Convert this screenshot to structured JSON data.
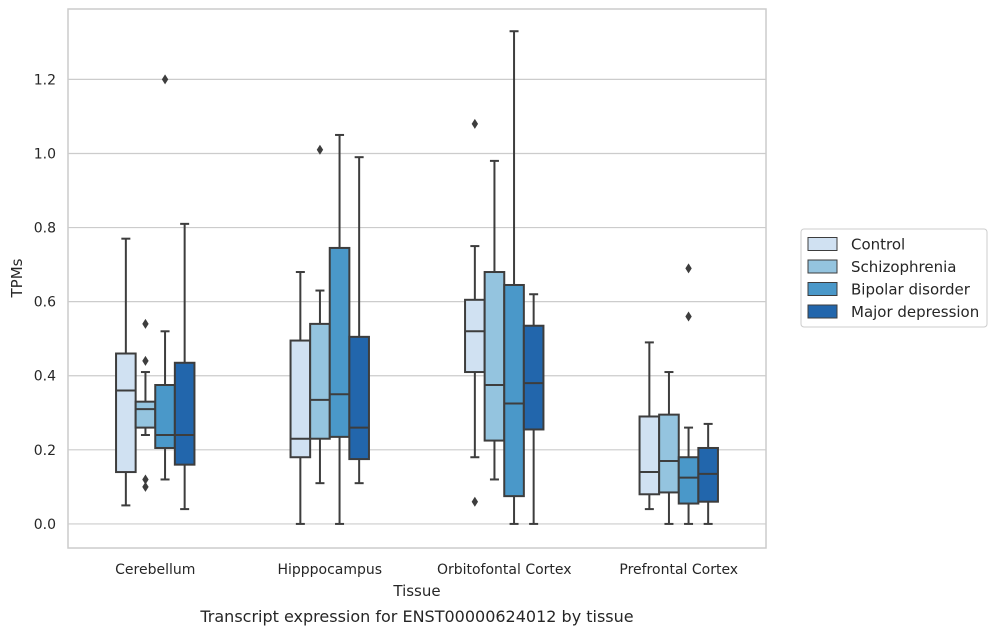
{
  "caption": "Transcript expression for ENST00000624012 by tissue",
  "chart_data": {
    "type": "box",
    "xlabel": "Tissue",
    "ylabel": "TPMs",
    "ylim": [
      -0.065,
      1.39
    ],
    "yticks": [
      "0.0",
      "0.2",
      "0.4",
      "0.6",
      "0.8",
      "1.0",
      "1.2"
    ],
    "grid": "horizontal",
    "legend_position": "right",
    "categories": [
      "Cerebellum",
      "Hipppocampus",
      "Orbitofontal Cortex",
      "Prefrontal Cortex"
    ],
    "series": [
      {
        "name": "Control",
        "color": "#d0e1f2",
        "boxes": [
          {
            "whislo": 0.05,
            "q1": 0.14,
            "med": 0.36,
            "q3": 0.46,
            "whishi": 0.77,
            "fliers": []
          },
          {
            "whislo": 0.0,
            "q1": 0.18,
            "med": 0.23,
            "q3": 0.495,
            "whishi": 0.68,
            "fliers": []
          },
          {
            "whislo": 0.18,
            "q1": 0.41,
            "med": 0.52,
            "q3": 0.605,
            "whishi": 0.75,
            "fliers": [
              1.08,
              0.06
            ]
          },
          {
            "whislo": 0.04,
            "q1": 0.08,
            "med": 0.14,
            "q3": 0.29,
            "whishi": 0.49,
            "fliers": []
          }
        ]
      },
      {
        "name": "Schizophrenia",
        "color": "#94c4df",
        "boxes": [
          {
            "whislo": 0.24,
            "q1": 0.26,
            "med": 0.31,
            "q3": 0.33,
            "whishi": 0.41,
            "fliers": [
              0.54,
              0.44,
              0.12,
              0.1
            ]
          },
          {
            "whislo": 0.11,
            "q1": 0.23,
            "med": 0.335,
            "q3": 0.54,
            "whishi": 0.63,
            "fliers": [
              1.01
            ]
          },
          {
            "whislo": 0.12,
            "q1": 0.225,
            "med": 0.375,
            "q3": 0.68,
            "whishi": 0.98,
            "fliers": []
          },
          {
            "whislo": 0.0,
            "q1": 0.085,
            "med": 0.17,
            "q3": 0.295,
            "whishi": 0.41,
            "fliers": []
          }
        ]
      },
      {
        "name": "Bipolar disorder",
        "color": "#4a98c9",
        "boxes": [
          {
            "whislo": 0.12,
            "q1": 0.205,
            "med": 0.24,
            "q3": 0.375,
            "whishi": 0.52,
            "fliers": [
              1.2
            ]
          },
          {
            "whislo": 0.0,
            "q1": 0.235,
            "med": 0.35,
            "q3": 0.745,
            "whishi": 1.05,
            "fliers": []
          },
          {
            "whislo": 0.0,
            "q1": 0.075,
            "med": 0.325,
            "q3": 0.645,
            "whishi": 1.33,
            "fliers": []
          },
          {
            "whislo": 0.0,
            "q1": 0.055,
            "med": 0.125,
            "q3": 0.18,
            "whishi": 0.26,
            "fliers": [
              0.69,
              0.56
            ]
          }
        ]
      },
      {
        "name": "Major depression",
        "color": "#2266ac",
        "boxes": [
          {
            "whislo": 0.04,
            "q1": 0.16,
            "med": 0.24,
            "q3": 0.435,
            "whishi": 0.81,
            "fliers": []
          },
          {
            "whislo": 0.11,
            "q1": 0.175,
            "med": 0.26,
            "q3": 0.505,
            "whishi": 0.99,
            "fliers": []
          },
          {
            "whislo": 0.0,
            "q1": 0.255,
            "med": 0.38,
            "q3": 0.535,
            "whishi": 0.62,
            "fliers": []
          },
          {
            "whislo": 0.0,
            "q1": 0.06,
            "med": 0.135,
            "q3": 0.205,
            "whishi": 0.27,
            "fliers": []
          }
        ]
      }
    ]
  }
}
